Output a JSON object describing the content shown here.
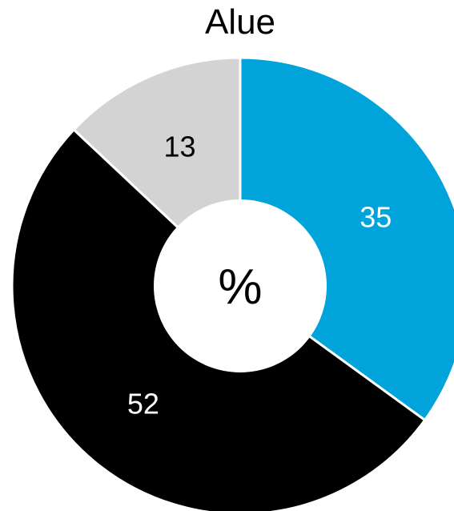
{
  "chart_data": {
    "type": "pie",
    "title": "Alue",
    "center_label": "%",
    "slices": [
      {
        "label": "35",
        "value": 35,
        "color": "#00A3DA",
        "label_color": "#FFFFFF"
      },
      {
        "label": "52",
        "value": 52,
        "color": "#000000",
        "label_color": "#FFFFFF"
      },
      {
        "label": "13",
        "value": 13,
        "color": "#D3D3D3",
        "label_color": "#000000"
      }
    ]
  }
}
